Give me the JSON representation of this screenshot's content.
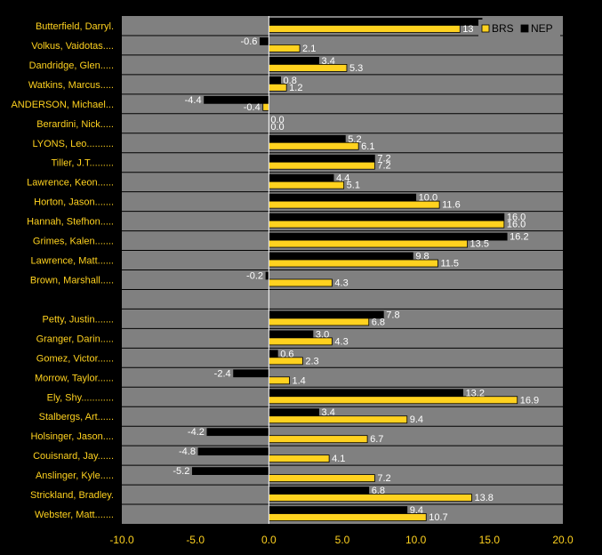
{
  "chart_data": {
    "type": "bar",
    "orientation": "horizontal",
    "title": "",
    "xlabel": "",
    "ylabel": "",
    "xlim": [
      -10,
      20
    ],
    "x_ticks": [
      -10,
      -5,
      0,
      5,
      10,
      15,
      20
    ],
    "x_tick_labels": [
      "-10.0",
      "-5.0",
      "0.0",
      "5.0",
      "10.0",
      "15.0",
      "20.0"
    ],
    "grid": true,
    "legend_position": "top-right",
    "categories": [
      "Butterfield, Darryl.",
      "Volkus, Vaidotas....",
      "Dandridge, Glen.....",
      "Watkins, Marcus.....",
      "ANDERSON, Michael...",
      "Berardini, Nick.....",
      "LYONS, Leo..........",
      "Tiller, J.T.........",
      "Lawrence, Keon......",
      "Horton, Jason.......",
      "Hannah, Stefhon.....",
      "Grimes, Kalen.......",
      "Lawrence, Matt......",
      "Brown, Marshall.....",
      "",
      "Petty, Justin.......",
      "Granger, Darin.....",
      "Gomez, Victor......",
      "Morrow, Taylor......",
      "Ely, Shy............",
      "Stalbergs, Art......",
      "Holsinger, Jason....",
      "Couisnard, Jay......",
      "Anslinger, Kyle.....",
      "Strickland, Bradley.",
      "Webster, Matt......."
    ],
    "series": [
      {
        "name": "NEP",
        "color": "#000000",
        "values": [
          14.5,
          -0.6,
          3.4,
          0.8,
          -4.4,
          0.0,
          5.2,
          7.2,
          4.4,
          10.0,
          16.0,
          16.2,
          9.8,
          -0.2,
          null,
          7.8,
          3.0,
          0.6,
          -2.4,
          13.2,
          3.4,
          -4.2,
          -4.8,
          -5.2,
          6.8,
          9.4
        ],
        "labels": [
          "",
          "-0.6",
          "3.4",
          "0.8",
          "-4.4",
          "0.0",
          "5.2",
          "7.2",
          "4.4",
          "10.0",
          "16.0",
          "16.2",
          "9.8",
          "-0.2",
          "",
          "7.8",
          "3.0",
          "0.6",
          "-2.4",
          "13.2",
          "3.4",
          "-4.2",
          "-4.8",
          "-5.2",
          "6.8",
          "9.4"
        ]
      },
      {
        "name": "BRS",
        "color": "#FFD21F",
        "values": [
          13.0,
          2.1,
          5.3,
          1.2,
          -0.4,
          0.0,
          6.1,
          7.2,
          5.1,
          11.6,
          16.0,
          13.5,
          11.5,
          4.3,
          null,
          6.8,
          4.3,
          2.3,
          1.4,
          16.9,
          9.4,
          6.7,
          4.1,
          7.2,
          13.8,
          10.7
        ],
        "labels": [
          "13",
          "2.1",
          "5.3",
          "1.2",
          "-0.4",
          "0.0",
          "6.1",
          "7.2",
          "5.1",
          "11.6",
          "16.0",
          "13.5",
          "11.5",
          "4.3",
          "",
          "6.8",
          "4.3",
          "2.3",
          "1.4",
          "16.9",
          "9.4",
          "6.7",
          "4.1",
          "7.2",
          "13.8",
          "10.7"
        ]
      }
    ],
    "colors": {
      "background": "#000000",
      "plot_area": "#808080",
      "grid": "#000000",
      "zero_line": "#FFFFFF",
      "label_text": "#FFD21F",
      "value_text": "#FFFFFF",
      "legend_bg": "#808080"
    }
  }
}
